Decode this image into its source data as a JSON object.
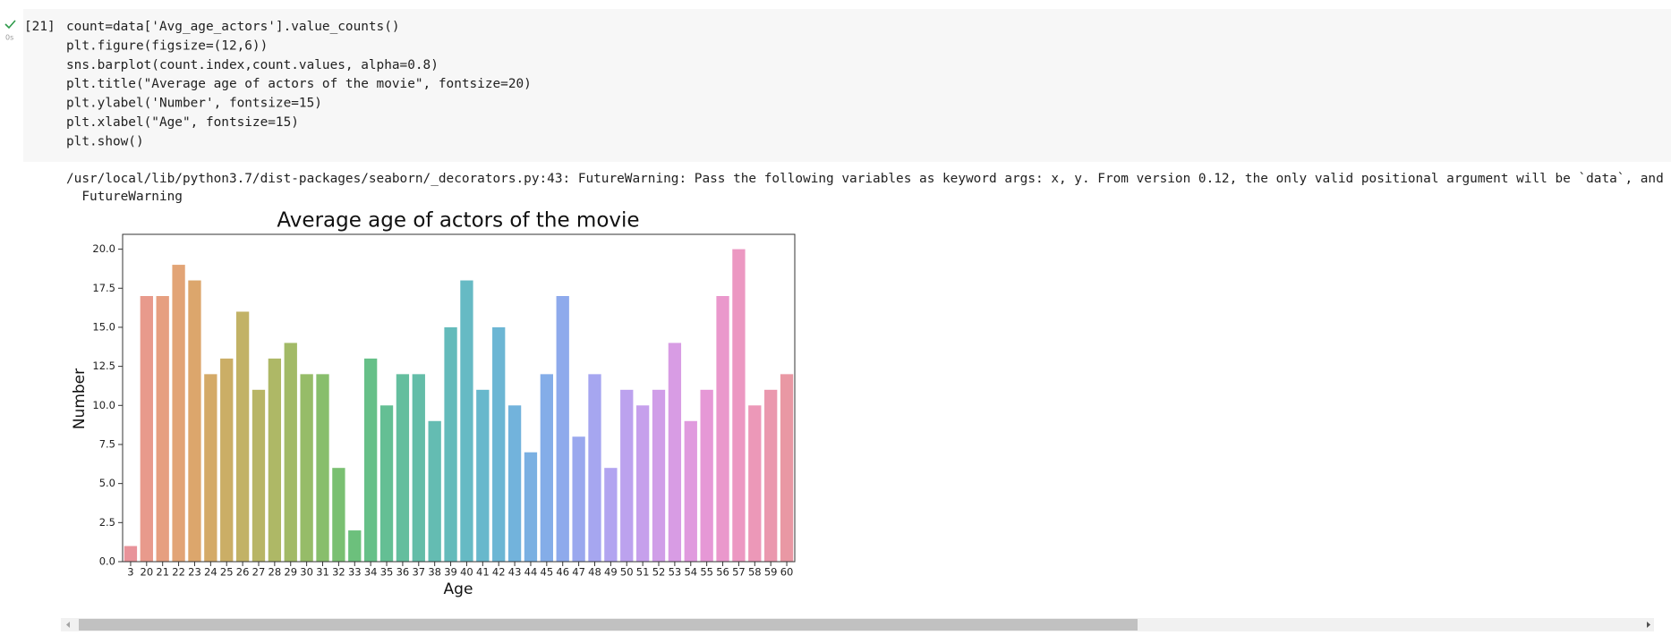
{
  "cell": {
    "status": "0s",
    "prompt": "[21]",
    "code": [
      "count=data['Avg_age_actors'].value_counts()",
      "plt.figure(figsize=(12,6))",
      "sns.barplot(count.index,count.values, alpha=0.8)",
      "plt.title(\"Average age of actors of the movie\", fontsize=20)",
      "plt.ylabel('Number', fontsize=15)",
      "plt.xlabel(\"Age\", fontsize=15)",
      "plt.show()"
    ],
    "output": [
      "/usr/local/lib/python3.7/dist-packages/seaborn/_decorators.py:43: FutureWarning: Pass the following variables as keyword args: x, y. From version 0.12, the only valid positional argument will be `data`, and",
      "  FutureWarning"
    ]
  },
  "chart_data": {
    "type": "bar",
    "title": "Average age of actors of the movie",
    "x_label": "Age",
    "y_label": "Number",
    "categories": [
      "3",
      "20",
      "21",
      "22",
      "23",
      "24",
      "25",
      "26",
      "27",
      "28",
      "29",
      "30",
      "31",
      "32",
      "33",
      "34",
      "35",
      "36",
      "37",
      "38",
      "39",
      "40",
      "41",
      "42",
      "43",
      "44",
      "45",
      "46",
      "47",
      "48",
      "49",
      "50",
      "51",
      "52",
      "53",
      "54",
      "55",
      "56",
      "57",
      "58",
      "59",
      "60"
    ],
    "values": [
      1,
      17,
      17,
      19,
      18,
      12,
      13,
      16,
      11,
      13,
      14,
      12,
      12,
      6,
      2,
      13,
      10,
      12,
      12,
      9,
      15,
      18,
      11,
      15,
      10,
      7,
      12,
      17,
      8,
      12,
      6,
      11,
      10,
      11,
      14,
      9,
      11,
      17,
      20,
      10,
      11,
      12
    ],
    "colors": [
      "#e8939a",
      "#e89a8c",
      "#e69f80",
      "#e2a476",
      "#dca66c",
      "#d4aa68",
      "#cbae66",
      "#c2b266",
      "#b8b566",
      "#aeb866",
      "#a2ba66",
      "#96bc68",
      "#88be6c",
      "#7ac072",
      "#6cc07c",
      "#66c088",
      "#64bf94",
      "#64be9e",
      "#64bda8",
      "#64bcb2",
      "#64bbbb",
      "#66bac4",
      "#68b8cc",
      "#6cb6d4",
      "#72b3dc",
      "#7ab0e2",
      "#84ade8",
      "#8eaaec",
      "#9aa8ee",
      "#a6a6f0",
      "#b2a4f0",
      "#bca2ee",
      "#c6a0ec",
      "#d09ee8",
      "#d89ce4",
      "#e09ade",
      "#e698d6",
      "#ea98cc",
      "#ec98c2",
      "#ec98b8",
      "#ea98ae",
      "#e998a4"
    ],
    "ylim": [
      0,
      20.95
    ],
    "yticks": [
      {
        "value": 0,
        "label": "0.0"
      },
      {
        "value": 2.5,
        "label": "2.5"
      },
      {
        "value": 5,
        "label": "5.0"
      },
      {
        "value": 7.5,
        "label": "7.5"
      },
      {
        "value": 10,
        "label": "10.0"
      },
      {
        "value": 12.5,
        "label": "12.5"
      },
      {
        "value": 15,
        "label": "15.0"
      },
      {
        "value": 17.5,
        "label": "17.5"
      },
      {
        "value": 20,
        "label": "20.0"
      }
    ]
  }
}
